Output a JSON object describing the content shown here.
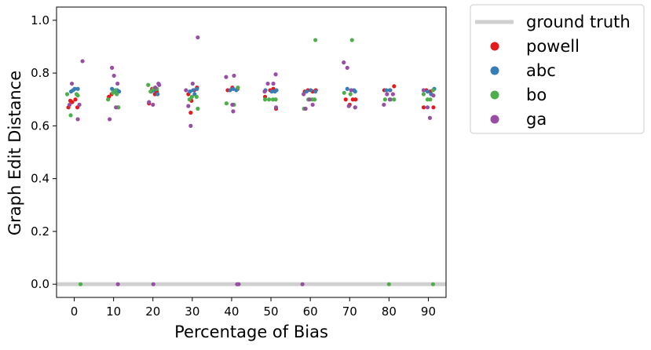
{
  "chart_data": {
    "type": "scatter",
    "title": "",
    "xlabel": "Percentage of Bias",
    "ylabel": "Graph Edit Distance",
    "xticks": [
      0,
      10,
      20,
      30,
      40,
      50,
      60,
      70,
      80,
      90
    ],
    "yticks": [
      0.0,
      0.2,
      0.4,
      0.6,
      0.8,
      1.0
    ],
    "xlim": [
      -4.5,
      94.5
    ],
    "ylim": [
      -0.05,
      1.05
    ],
    "grid": false,
    "legend_position": "outside-top-right",
    "ground_truth": {
      "name": "ground truth",
      "value": 0.0,
      "color": "#d0d0d0"
    },
    "series": [
      {
        "name": "powell",
        "color": "#e41a1c",
        "points": [
          [
            -1.5,
            0.67
          ],
          [
            -0.5,
            0.69
          ],
          [
            0.8,
            0.67
          ],
          [
            0.3,
            0.7
          ],
          [
            -1.0,
            0.695
          ],
          [
            8.8,
            0.71
          ],
          [
            9.5,
            0.72
          ],
          [
            10.5,
            0.735
          ],
          [
            11.2,
            0.67
          ],
          [
            19.0,
            0.685
          ],
          [
            19.8,
            0.74
          ],
          [
            20.5,
            0.72
          ],
          [
            21.0,
            0.73
          ],
          [
            29.0,
            0.72
          ],
          [
            29.6,
            0.65
          ],
          [
            30.5,
            0.735
          ],
          [
            31.2,
            0.745
          ],
          [
            29.8,
            0.695
          ],
          [
            39.0,
            0.735
          ],
          [
            40.2,
            0.745
          ],
          [
            41.5,
            0.74
          ],
          [
            48.5,
            0.71
          ],
          [
            49.8,
            0.735
          ],
          [
            51.3,
            0.665
          ],
          [
            50.6,
            0.74
          ],
          [
            58.6,
            0.73
          ],
          [
            59.4,
            0.735
          ],
          [
            60.6,
            0.73
          ],
          [
            61.4,
            0.735
          ],
          [
            69.0,
            0.7
          ],
          [
            70.0,
            0.68
          ],
          [
            70.8,
            0.7
          ],
          [
            71.5,
            0.7
          ],
          [
            78.8,
            0.735
          ],
          [
            80.3,
            0.735
          ],
          [
            81.3,
            0.75
          ],
          [
            88.8,
            0.67
          ],
          [
            89.5,
            0.735
          ],
          [
            90.5,
            0.73
          ],
          [
            91.3,
            0.67
          ]
        ]
      },
      {
        "name": "abc",
        "color": "#377eb8",
        "points": [
          [
            -0.8,
            0.73
          ],
          [
            0.1,
            0.74
          ],
          [
            0.9,
            0.74
          ],
          [
            -0.3,
            0.735
          ],
          [
            9.6,
            0.74
          ],
          [
            10.3,
            0.73
          ],
          [
            10.9,
            0.735
          ],
          [
            11.4,
            0.73
          ],
          [
            19.6,
            0.73
          ],
          [
            20.3,
            0.735
          ],
          [
            21.2,
            0.72
          ],
          [
            29.4,
            0.73
          ],
          [
            30.2,
            0.735
          ],
          [
            31.2,
            0.74
          ],
          [
            30.6,
            0.72
          ],
          [
            39.6,
            0.735
          ],
          [
            40.4,
            0.74
          ],
          [
            41.2,
            0.735
          ],
          [
            48.6,
            0.735
          ],
          [
            50.2,
            0.73
          ],
          [
            51.4,
            0.735
          ],
          [
            51.0,
            0.73
          ],
          [
            59.0,
            0.73
          ],
          [
            60.1,
            0.735
          ],
          [
            61.3,
            0.73
          ],
          [
            69.4,
            0.74
          ],
          [
            70.4,
            0.735
          ],
          [
            71.1,
            0.735
          ],
          [
            71.4,
            0.73
          ],
          [
            79.3,
            0.735
          ],
          [
            80.2,
            0.735
          ],
          [
            89.8,
            0.73
          ],
          [
            90.7,
            0.72
          ],
          [
            91.5,
            0.74
          ]
        ]
      },
      {
        "name": "bo",
        "color": "#4daf4a",
        "points": [
          [
            -1.8,
            0.72
          ],
          [
            -0.9,
            0.64
          ],
          [
            0.6,
            0.72
          ],
          [
            0.9,
            0.715
          ],
          [
            1.6,
            0.0
          ],
          [
            8.6,
            0.7
          ],
          [
            9.8,
            0.725
          ],
          [
            10.5,
            0.735
          ],
          [
            10.8,
            0.72
          ],
          [
            11.2,
            0.67
          ],
          [
            18.8,
            0.755
          ],
          [
            19.4,
            0.73
          ],
          [
            20.1,
            0.74
          ],
          [
            21.0,
            0.74
          ],
          [
            29.3,
            0.7
          ],
          [
            29.9,
            0.71
          ],
          [
            31.1,
            0.71
          ],
          [
            31.4,
            0.665
          ],
          [
            38.7,
            0.685
          ],
          [
            40.6,
            0.68
          ],
          [
            41.6,
            0.745
          ],
          [
            48.5,
            0.7
          ],
          [
            49.5,
            0.7
          ],
          [
            50.5,
            0.7
          ],
          [
            51.2,
            0.7
          ],
          [
            58.4,
            0.665
          ],
          [
            59.5,
            0.7
          ],
          [
            60.5,
            0.7
          ],
          [
            61.1,
            0.7
          ],
          [
            61.3,
            0.925
          ],
          [
            68.6,
            0.725
          ],
          [
            70.2,
            0.72
          ],
          [
            71.4,
            0.67
          ],
          [
            70.6,
            0.925
          ],
          [
            79.0,
            0.7
          ],
          [
            80.4,
            0.7
          ],
          [
            81.3,
            0.7
          ],
          [
            80.0,
            0.0
          ],
          [
            88.8,
            0.72
          ],
          [
            89.8,
            0.7
          ],
          [
            90.5,
            0.7
          ],
          [
            91.2,
            0.735
          ],
          [
            91.2,
            0.0
          ]
        ]
      },
      {
        "name": "ga",
        "color": "#984ea3",
        "points": [
          [
            -1.2,
            0.68
          ],
          [
            -0.6,
            0.76
          ],
          [
            0.9,
            0.625
          ],
          [
            1.3,
            0.68
          ],
          [
            2.1,
            0.845
          ],
          [
            9.0,
            0.625
          ],
          [
            9.6,
            0.82
          ],
          [
            10.1,
            0.79
          ],
          [
            11.0,
            0.76
          ],
          [
            10.6,
            0.67
          ],
          [
            11.1,
            0.0
          ],
          [
            19.0,
            0.69
          ],
          [
            20.0,
            0.68
          ],
          [
            20.6,
            0.745
          ],
          [
            21.4,
            0.76
          ],
          [
            21.6,
            0.755
          ],
          [
            20.1,
            0.0
          ],
          [
            28.4,
            0.735
          ],
          [
            29.0,
            0.675
          ],
          [
            29.6,
            0.6
          ],
          [
            30.1,
            0.76
          ],
          [
            31.4,
            0.935
          ],
          [
            38.6,
            0.785
          ],
          [
            40.2,
            0.68
          ],
          [
            40.6,
            0.79
          ],
          [
            40.4,
            0.655
          ],
          [
            41.4,
            0.0
          ],
          [
            41.8,
            0.0
          ],
          [
            48.4,
            0.73
          ],
          [
            49.2,
            0.76
          ],
          [
            50.6,
            0.76
          ],
          [
            51.2,
            0.795
          ],
          [
            51.3,
            0.67
          ],
          [
            58.3,
            0.72
          ],
          [
            58.8,
            0.665
          ],
          [
            59.8,
            0.7
          ],
          [
            60.6,
            0.68
          ],
          [
            58.0,
            0.0
          ],
          [
            68.5,
            0.84
          ],
          [
            69.4,
            0.82
          ],
          [
            69.8,
            0.675
          ],
          [
            70.4,
            0.735
          ],
          [
            71.4,
            0.67
          ],
          [
            78.7,
            0.68
          ],
          [
            79.5,
            0.72
          ],
          [
            80.2,
            0.7
          ],
          [
            81.0,
            0.72
          ],
          [
            88.8,
            0.735
          ],
          [
            89.8,
            0.67
          ],
          [
            90.4,
            0.63
          ],
          [
            91.3,
            0.715
          ]
        ]
      }
    ]
  }
}
